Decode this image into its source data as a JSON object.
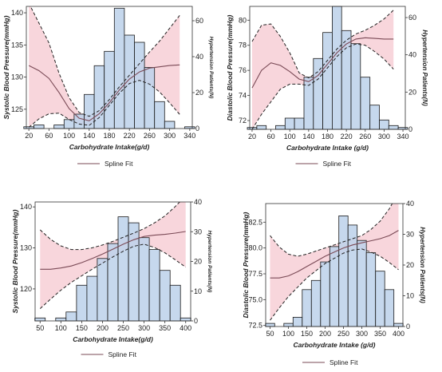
{
  "chart_data": [
    {
      "type": "bar",
      "xlabel": "Carbohydrate Intake(g/d)",
      "ylabel": "Systolic Blood Pressure(mmHg)",
      "y2label": "Hypertension Patients(N)",
      "legend_label": "Spline Fit",
      "xlim": [
        15,
        345
      ],
      "ylim": [
        122,
        141
      ],
      "y2lim": [
        0,
        68
      ],
      "xticks": [
        "20",
        "60",
        "100",
        "140",
        "180",
        "220",
        "260",
        "300",
        "340"
      ],
      "yticks": [
        "125",
        "130",
        "135",
        "140"
      ],
      "y2ticks": [
        "0",
        "20",
        "40",
        "60"
      ],
      "bin_width": 20,
      "hist_x": [
        20,
        40,
        60,
        80,
        100,
        120,
        140,
        160,
        180,
        200,
        220,
        240,
        260,
        280,
        300,
        320,
        340
      ],
      "hist_values": [
        1,
        2,
        0,
        2,
        5,
        8,
        19,
        35,
        43,
        67,
        52,
        48,
        34,
        15,
        4,
        0,
        1
      ],
      "spline": {
        "x": [
          20,
          40,
          60,
          80,
          100,
          120,
          140,
          160,
          180,
          200,
          220,
          240,
          260,
          280,
          300,
          320
        ],
        "fit": [
          131.8,
          131.0,
          129.8,
          127.6,
          125.1,
          123.6,
          123.2,
          124.3,
          126.0,
          128.0,
          129.7,
          130.8,
          131.4,
          131.6,
          131.8,
          131.9
        ],
        "lower": [
          122.2,
          123.5,
          124.3,
          124.4,
          123.4,
          122.7,
          122.5,
          123.7,
          125.6,
          127.5,
          129.0,
          129.5,
          128.9,
          127.7,
          126.0,
          124.2
        ],
        "upper": [
          141.5,
          138.4,
          135.3,
          130.6,
          126.8,
          124.5,
          123.9,
          124.8,
          126.5,
          128.5,
          130.3,
          132.1,
          133.9,
          135.6,
          137.6,
          139.6
        ]
      }
    },
    {
      "type": "bar",
      "xlabel": "Carbohydrate Intake (g/d)",
      "ylabel": "Diastolic Blood Pressure(mmHg)",
      "y2label": "Hypertension Patients(N)",
      "legend_label": "Spline Fit",
      "xlim": [
        15,
        345
      ],
      "ylim": [
        71.3,
        81.1
      ],
      "y2lim": [
        0,
        66
      ],
      "xticks": [
        "20",
        "60",
        "100",
        "140",
        "180",
        "220",
        "260",
        "300",
        "340"
      ],
      "yticks": [
        "72",
        "74",
        "76",
        "78",
        "80"
      ],
      "y2ticks": [
        "0",
        "20",
        "40",
        "60"
      ],
      "bin_width": 20,
      "hist_x": [
        20,
        40,
        60,
        80,
        100,
        120,
        140,
        160,
        180,
        200,
        220,
        240,
        260,
        280,
        300,
        320,
        340
      ],
      "hist_values": [
        1,
        2,
        0,
        2,
        6,
        6,
        28,
        38,
        52,
        66,
        53,
        46,
        28,
        13,
        5,
        2,
        1
      ],
      "spline": {
        "x": [
          20,
          40,
          60,
          80,
          100,
          120,
          140,
          160,
          180,
          200,
          220,
          240,
          260,
          280,
          300,
          320
        ],
        "fit": [
          74.6,
          76.0,
          76.6,
          76.4,
          75.9,
          75.3,
          75.1,
          75.6,
          76.5,
          77.4,
          78.1,
          78.5,
          78.6,
          78.55,
          78.5,
          78.5
        ],
        "lower": [
          71.3,
          72.5,
          73.5,
          74.5,
          74.9,
          74.9,
          74.8,
          75.3,
          76.2,
          77.1,
          77.8,
          78.1,
          78.0,
          77.5,
          76.9,
          76.1
        ],
        "upper": [
          78.3,
          79.6,
          79.7,
          78.7,
          77.4,
          75.8,
          75.4,
          75.9,
          76.8,
          77.7,
          78.4,
          78.9,
          79.2,
          79.6,
          80.1,
          80.8
        ]
      }
    },
    {
      "type": "bar",
      "xlabel": "Carbohydrate Intake(g/d)",
      "ylabel": "Systolic Blood Pressure(mmHg)",
      "y2label": "Hypertension Patients(N)",
      "legend_label": "Spline Fit",
      "xlim": [
        38,
        412
      ],
      "ylim": [
        112.2,
        141.2
      ],
      "y2lim": [
        0,
        40
      ],
      "xticks": [
        "50",
        "100",
        "150",
        "200",
        "250",
        "300",
        "350",
        "400"
      ],
      "yticks": [
        "120",
        "130",
        "140"
      ],
      "y2ticks": [
        "0",
        "10",
        "20",
        "30",
        "40"
      ],
      "bin_width": 25,
      "hist_x": [
        50,
        75,
        100,
        125,
        150,
        175,
        200,
        225,
        250,
        275,
        300,
        325,
        350,
        375,
        400
      ],
      "hist_values": [
        1,
        0,
        1,
        3,
        12,
        15,
        21,
        26,
        35,
        33,
        28,
        24,
        17,
        12,
        1
      ],
      "spline": {
        "x": [
          50,
          75,
          100,
          125,
          150,
          175,
          200,
          225,
          250,
          275,
          300,
          325,
          350,
          375,
          400
        ],
        "fit": [
          124.8,
          124.8,
          125.1,
          125.6,
          126.4,
          127.4,
          128.5,
          129.7,
          130.9,
          132.0,
          132.8,
          133.1,
          133.3,
          133.6,
          134.0
        ],
        "lower": [
          115.2,
          117.5,
          119.7,
          121.6,
          123.2,
          124.8,
          126.3,
          127.8,
          129.2,
          130.4,
          130.9,
          130.1,
          128.8,
          127.1,
          125.3
        ],
        "upper": [
          134.4,
          132.1,
          130.5,
          129.6,
          129.6,
          130.0,
          130.7,
          131.6,
          132.6,
          133.6,
          134.7,
          136.1,
          137.8,
          140.1,
          142.7
        ]
      }
    },
    {
      "type": "bar",
      "xlabel": "Carbohydrate Intake (g/d)",
      "ylabel": "Diastolic Blood Pressure(mmHg)",
      "y2label": "Hypertension Patients(N)",
      "legend_label": "Spline Fit",
      "xlim": [
        38,
        412
      ],
      "ylim": [
        72.4,
        84.3
      ],
      "y2lim": [
        0,
        40
      ],
      "xticks": [
        "50",
        "100",
        "150",
        "200",
        "250",
        "300",
        "350",
        "400"
      ],
      "yticks": [
        "72.5",
        "75.0",
        "77.5",
        "80.0",
        "82.5"
      ],
      "y2ticks": [
        "0",
        "10",
        "20",
        "30",
        "40"
      ],
      "bin_width": 25,
      "hist_x": [
        50,
        75,
        100,
        125,
        150,
        175,
        200,
        225,
        250,
        275,
        300,
        325,
        350,
        375,
        400
      ],
      "hist_values": [
        1,
        0,
        1,
        3,
        12,
        15,
        21,
        26,
        36,
        33,
        28,
        24,
        18,
        12,
        1
      ],
      "spline": {
        "x": [
          50,
          75,
          100,
          125,
          150,
          175,
          200,
          225,
          250,
          275,
          300,
          325,
          350,
          375,
          400
        ],
        "fit": [
          77.1,
          77.1,
          77.3,
          77.7,
          78.2,
          78.7,
          79.2,
          79.6,
          80.0,
          80.3,
          80.5,
          80.7,
          80.9,
          81.2,
          81.7
        ],
        "lower": [
          73.0,
          74.2,
          75.3,
          76.2,
          77.1,
          77.8,
          78.5,
          79.0,
          79.5,
          79.8,
          79.9,
          79.6,
          79.2,
          78.6,
          77.9
        ],
        "upper": [
          81.2,
          80.1,
          79.4,
          79.2,
          79.4,
          79.7,
          80.0,
          80.3,
          80.6,
          80.9,
          81.2,
          81.8,
          82.6,
          83.8,
          85.4
        ]
      }
    }
  ]
}
